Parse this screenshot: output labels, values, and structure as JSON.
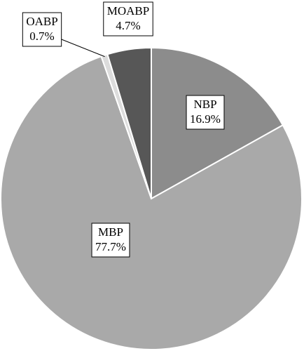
{
  "chart_data": {
    "type": "pie",
    "categories": [
      "NBP",
      "MBP",
      "OABP",
      "MOABP"
    ],
    "values": [
      16.9,
      77.7,
      0.7,
      4.7
    ],
    "value_labels": [
      "16.9%",
      "77.7%",
      "0.7%",
      "4.7%"
    ],
    "colors": [
      "#8c8c8c",
      "#a9a9a9",
      "#dcdcdc",
      "#575757"
    ]
  }
}
